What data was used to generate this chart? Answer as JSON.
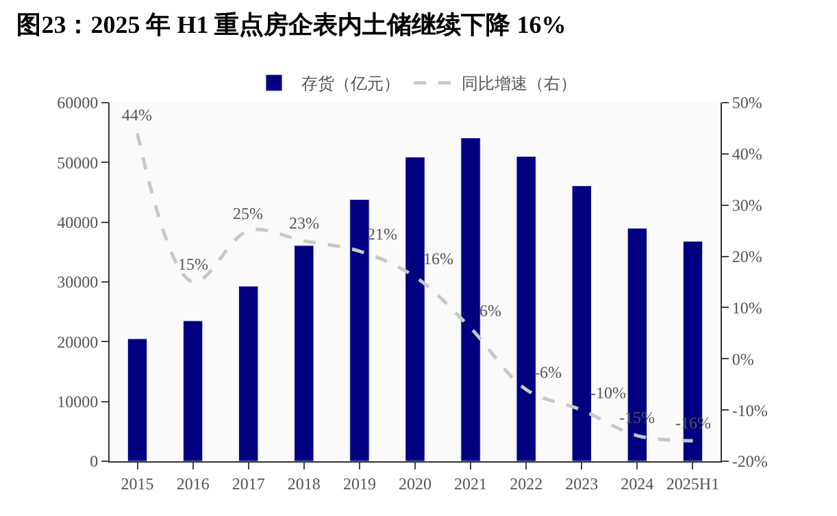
{
  "chart_data": {
    "type": "bar",
    "title": "图23：2025 年 H1 重点房企表内土储继续下降 16%",
    "categories": [
      "2015",
      "2016",
      "2017",
      "2018",
      "2019",
      "2020",
      "2021",
      "2022",
      "2023",
      "2024",
      "2025H1"
    ],
    "series": [
      {
        "name": "存货（亿元）",
        "color": "#000080",
        "values": [
          20500,
          23500,
          29300,
          36100,
          43800,
          50900,
          54100,
          51000,
          46100,
          39000,
          36800
        ]
      },
      {
        "name": "同比增速（右）",
        "type": "line",
        "axis": "y2",
        "color": "#c8c8c8",
        "line_style": "dashed",
        "marker": "none",
        "data_labels": true,
        "value_labels": [
          "44%",
          "15%",
          "25%",
          "23%",
          "21%",
          "16%",
          "6%",
          "-6%",
          "-10%",
          "-15%",
          "-16%"
        ],
        "values": [
          44,
          15,
          25,
          23,
          21,
          16,
          6,
          -6,
          -10,
          -15,
          -16
        ]
      }
    ],
    "ylim": [
      0,
      60000
    ],
    "yticks": [
      0,
      10000,
      20000,
      30000,
      40000,
      50000,
      60000
    ],
    "y2lim": [
      -20,
      50
    ],
    "y2ticks": [
      {
        "value": -20,
        "label": "-20%"
      },
      {
        "value": -10,
        "label": "-10%"
      },
      {
        "value": 0,
        "label": "0%"
      },
      {
        "value": 10,
        "label": "10%"
      },
      {
        "value": 20,
        "label": "20%"
      },
      {
        "value": 30,
        "label": "30%"
      },
      {
        "value": 40,
        "label": "40%"
      },
      {
        "value": 50,
        "label": "50%"
      }
    ],
    "legend": "top"
  }
}
